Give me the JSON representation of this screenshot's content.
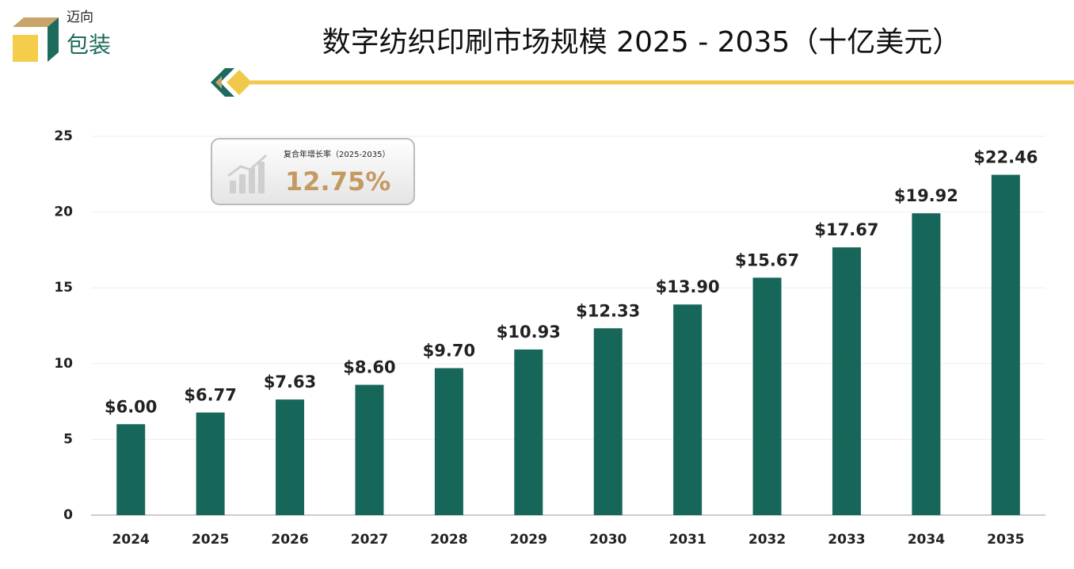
{
  "logo": {
    "line1": "迈向",
    "line2": "包装"
  },
  "chart_data": {
    "type": "bar",
    "title": "数字纺织印刷市场规模 2025 - 2035（十亿美元）",
    "annotations": [
      "复合年增长率（2025-2035）",
      "12.75%"
    ],
    "categories": [
      "2024",
      "2025",
      "2026",
      "2027",
      "2028",
      "2029",
      "2030",
      "2031",
      "2032",
      "2033",
      "2034",
      "2035"
    ],
    "values": [
      6.0,
      6.77,
      7.63,
      8.6,
      9.7,
      10.93,
      12.33,
      13.9,
      15.67,
      17.67,
      19.92,
      22.46
    ],
    "value_labels": [
      "$6.00",
      "$6.77",
      "$7.63",
      "$8.60",
      "$9.70",
      "$10.93",
      "$12.33",
      "$13.90",
      "$15.67",
      "$17.67",
      "$19.92",
      "$22.46"
    ],
    "color": "#17665a",
    "ylim": [
      0,
      25
    ],
    "yticks": [
      0,
      5,
      10,
      15,
      20,
      25
    ],
    "grid": true
  }
}
